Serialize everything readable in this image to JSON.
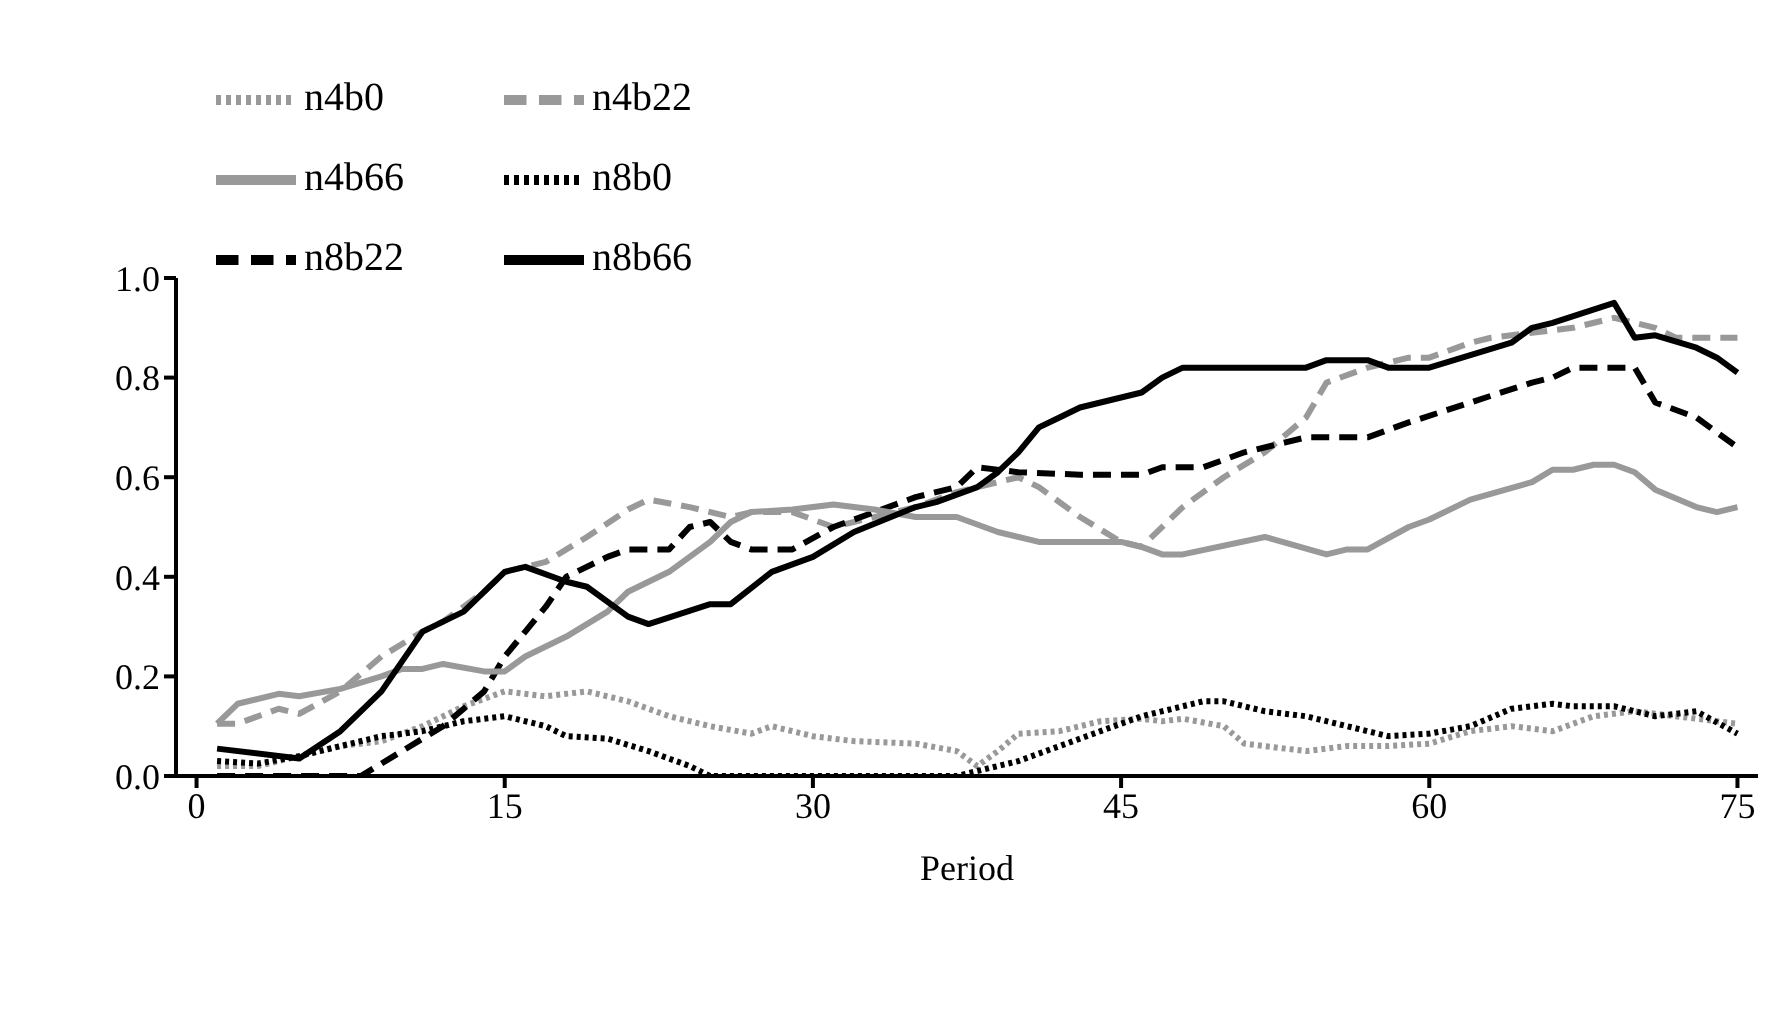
{
  "chart_data": {
    "type": "line",
    "xlabel": "Period",
    "xlim": [
      -1,
      76
    ],
    "xticks": [
      0,
      15,
      30,
      45,
      60,
      75
    ],
    "ylim": [
      0,
      1
    ],
    "yticks": [
      {
        "value": 0,
        "label": "0.0"
      },
      {
        "value": 0.2,
        "label": "0.2"
      },
      {
        "value": 0.4,
        "label": "0.4"
      },
      {
        "value": 0.6,
        "label": "0.6"
      },
      {
        "value": 0.8,
        "label": "0.8"
      },
      {
        "value": 1,
        "label": "1.0"
      }
    ],
    "grid": false,
    "legend": "top left",
    "marker": "none",
    "series": [
      {
        "name": "n4b0",
        "color": "#999999",
        "line_style": "dotted",
        "x": [
          1,
          3,
          5,
          7,
          9,
          11,
          13,
          15,
          17,
          19,
          21,
          23,
          25,
          27,
          28,
          30,
          32,
          35,
          37,
          38,
          39,
          40,
          42,
          44,
          46,
          47,
          48,
          50,
          51,
          54,
          56,
          58,
          60,
          62,
          64,
          66,
          68,
          70,
          72,
          74,
          75
        ],
        "values": [
          0.02,
          0.02,
          0.04,
          0.06,
          0.07,
          0.1,
          0.14,
          0.17,
          0.16,
          0.17,
          0.15,
          0.12,
          0.1,
          0.085,
          0.1,
          0.08,
          0.07,
          0.065,
          0.05,
          0.02,
          0.05,
          0.085,
          0.09,
          0.11,
          0.115,
          0.11,
          0.115,
          0.1,
          0.065,
          0.05,
          0.06,
          0.06,
          0.065,
          0.09,
          0.1,
          0.09,
          0.12,
          0.13,
          0.12,
          0.11,
          0.105
        ]
      },
      {
        "name": "n8b0",
        "color": "#000000",
        "line_style": "dotted",
        "x": [
          1,
          3,
          5,
          7,
          9,
          11,
          13,
          15,
          17,
          18,
          20,
          22,
          24,
          25,
          37,
          38,
          40,
          42,
          44,
          46,
          48,
          49,
          50,
          52,
          54,
          56,
          58,
          60,
          62,
          64,
          66,
          67,
          69,
          71,
          73,
          75
        ],
        "values": [
          0.03,
          0.025,
          0.04,
          0.06,
          0.08,
          0.09,
          0.11,
          0.12,
          0.1,
          0.08,
          0.075,
          0.05,
          0.02,
          0,
          0,
          0.01,
          0.03,
          0.06,
          0.09,
          0.12,
          0.14,
          0.15,
          0.15,
          0.13,
          0.12,
          0.1,
          0.08,
          0.085,
          0.1,
          0.135,
          0.145,
          0.14,
          0.14,
          0.12,
          0.13,
          0.085
        ]
      },
      {
        "name": "n4b22",
        "color": "#999999",
        "line_style": "dashed",
        "x": [
          1,
          2,
          4,
          5,
          7,
          9,
          11,
          12,
          14,
          15,
          17,
          19,
          21,
          22,
          24,
          26,
          27,
          29,
          31,
          33,
          35,
          37,
          39,
          40,
          41,
          43,
          45,
          46,
          48,
          50,
          52,
          54,
          55,
          57,
          59,
          60,
          62,
          63,
          65,
          67,
          69,
          71,
          72,
          75
        ],
        "values": [
          0.105,
          0.105,
          0.135,
          0.125,
          0.17,
          0.24,
          0.29,
          0.31,
          0.37,
          0.41,
          0.43,
          0.48,
          0.535,
          0.555,
          0.54,
          0.52,
          0.53,
          0.53,
          0.5,
          0.52,
          0.54,
          0.57,
          0.59,
          0.6,
          0.58,
          0.52,
          0.47,
          0.46,
          0.54,
          0.6,
          0.65,
          0.72,
          0.79,
          0.82,
          0.84,
          0.84,
          0.87,
          0.88,
          0.89,
          0.9,
          0.92,
          0.9,
          0.88,
          0.88
        ]
      },
      {
        "name": "n8b22",
        "color": "#000000",
        "line_style": "dashed",
        "x": [
          1,
          8,
          10,
          12,
          14,
          15,
          17,
          18,
          20,
          21,
          23,
          24,
          25,
          26,
          27,
          29,
          31,
          33,
          35,
          37,
          38,
          40,
          43,
          46,
          47,
          49,
          51,
          53,
          54,
          57,
          59,
          62,
          65,
          66,
          67,
          70,
          71,
          73,
          75
        ],
        "values": [
          0,
          0,
          0.05,
          0.1,
          0.17,
          0.24,
          0.34,
          0.4,
          0.44,
          0.455,
          0.455,
          0.5,
          0.51,
          0.47,
          0.455,
          0.455,
          0.5,
          0.53,
          0.56,
          0.58,
          0.62,
          0.61,
          0.605,
          0.605,
          0.62,
          0.62,
          0.65,
          0.67,
          0.68,
          0.68,
          0.71,
          0.75,
          0.79,
          0.8,
          0.82,
          0.82,
          0.75,
          0.72,
          0.66
        ]
      },
      {
        "name": "n4b66",
        "color": "#999999",
        "line_style": "solid",
        "x": [
          1,
          2,
          4,
          5,
          7,
          9,
          10,
          11,
          12,
          14,
          15,
          16,
          18,
          20,
          21,
          23,
          25,
          26,
          27,
          29,
          31,
          33,
          35,
          37,
          39,
          41,
          45,
          46,
          47,
          48,
          52,
          55,
          56,
          57,
          59,
          60,
          62,
          65,
          66,
          67,
          68,
          69,
          70,
          71,
          73,
          74,
          75
        ],
        "values": [
          0.105,
          0.145,
          0.165,
          0.16,
          0.175,
          0.2,
          0.215,
          0.215,
          0.225,
          0.21,
          0.21,
          0.24,
          0.28,
          0.33,
          0.37,
          0.41,
          0.47,
          0.51,
          0.53,
          0.535,
          0.545,
          0.535,
          0.52,
          0.52,
          0.49,
          0.47,
          0.47,
          0.46,
          0.445,
          0.445,
          0.48,
          0.445,
          0.455,
          0.455,
          0.5,
          0.515,
          0.555,
          0.59,
          0.615,
          0.615,
          0.625,
          0.625,
          0.61,
          0.575,
          0.54,
          0.53,
          0.54
        ]
      },
      {
        "name": "n8b66",
        "color": "#000000",
        "line_style": "solid",
        "x": [
          1,
          5,
          7,
          9,
          11,
          13,
          15,
          16,
          18,
          19,
          21,
          22,
          25,
          26,
          28,
          30,
          32,
          35,
          36,
          38,
          39,
          40,
          41,
          42,
          43,
          44,
          45,
          46,
          47,
          48,
          54,
          55,
          57,
          58,
          60,
          62,
          64,
          65,
          66,
          69,
          70,
          71,
          73,
          74,
          75
        ],
        "values": [
          0.055,
          0.035,
          0.09,
          0.17,
          0.29,
          0.33,
          0.41,
          0.42,
          0.39,
          0.38,
          0.32,
          0.305,
          0.345,
          0.345,
          0.41,
          0.44,
          0.49,
          0.54,
          0.55,
          0.58,
          0.61,
          0.65,
          0.7,
          0.72,
          0.74,
          0.75,
          0.76,
          0.77,
          0.8,
          0.82,
          0.82,
          0.835,
          0.835,
          0.82,
          0.82,
          0.845,
          0.87,
          0.9,
          0.91,
          0.95,
          0.88,
          0.885,
          0.86,
          0.84,
          0.81
        ]
      }
    ]
  }
}
